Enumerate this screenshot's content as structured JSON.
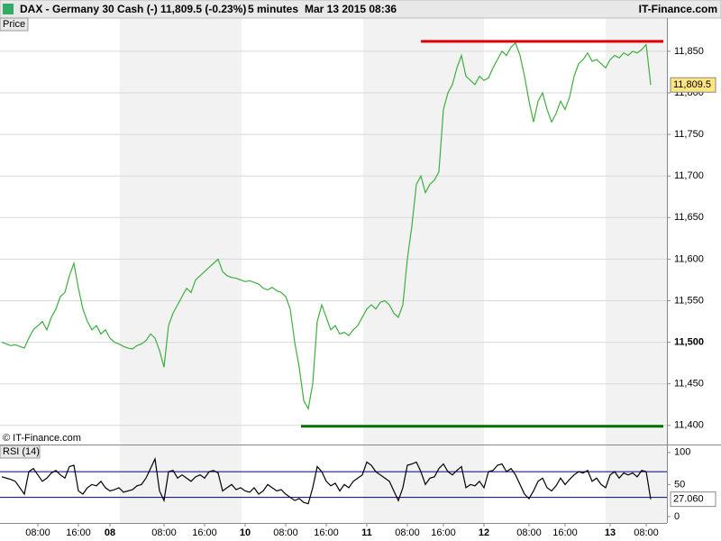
{
  "header": {
    "instrument": "DAX - Germany 30 Cash (-)",
    "price": "11,809.5 (-0.23%)",
    "interval": "5 minutes",
    "datetime": "Mar 13 2015 08:36",
    "brand": "IT-Finance.com"
  },
  "chart_data": [
    {
      "type": "line",
      "title": "Price",
      "copyright": "© IT-Finance.com",
      "categories": [
        null,
        null,
        null,
        null,
        null,
        null,
        null,
        null,
        "08:00",
        null,
        null,
        null,
        null,
        null,
        null,
        null,
        null,
        "16:00",
        null,
        null,
        null,
        null,
        null,
        null,
        "08",
        null,
        null,
        null,
        null,
        null,
        null,
        null,
        null,
        null,
        null,
        null,
        "08:00",
        null,
        null,
        null,
        null,
        null,
        null,
        null,
        null,
        "16:00",
        null,
        null,
        null,
        null,
        null,
        null,
        null,
        null,
        "10",
        null,
        null,
        null,
        null,
        null,
        null,
        null,
        null,
        "08:00",
        null,
        null,
        null,
        null,
        null,
        null,
        null,
        null,
        "16:00",
        null,
        null,
        null,
        null,
        null,
        null,
        null,
        null,
        "11",
        null,
        null,
        null,
        null,
        null,
        null,
        null,
        null,
        "08:00",
        null,
        null,
        null,
        null,
        null,
        null,
        null,
        "16:00",
        null,
        null,
        null,
        null,
        null,
        null,
        null,
        null,
        "12",
        null,
        null,
        null,
        null,
        null,
        null,
        null,
        null,
        null,
        "08:00",
        null,
        null,
        null,
        null,
        null,
        null,
        null,
        "16:00",
        null,
        null,
        null,
        null,
        null,
        null,
        null,
        null,
        null,
        "13",
        null,
        null,
        null,
        null,
        null,
        null,
        null,
        "08:00",
        null
      ],
      "series": [
        {
          "color": "#3fae3f",
          "values": [
            11500,
            11498,
            11496,
            11497,
            11495,
            11493,
            11505,
            11515,
            11520,
            11525,
            11515,
            11530,
            11540,
            11555,
            11560,
            11580,
            11595,
            11565,
            11540,
            11525,
            11515,
            11520,
            11510,
            11515,
            11505,
            11500,
            11498,
            11495,
            11493,
            11492,
            11496,
            11498,
            11502,
            11510,
            11505,
            11490,
            11470,
            11520,
            11535,
            11545,
            11555,
            11565,
            11560,
            11575,
            11580,
            11585,
            11590,
            11595,
            11600,
            11585,
            11580,
            11578,
            11577,
            11575,
            11573,
            11574,
            11572,
            11570,
            11565,
            11563,
            11566,
            11562,
            11560,
            11555,
            11540,
            11500,
            11470,
            11430,
            11420,
            11450,
            11525,
            11545,
            11530,
            11515,
            11520,
            11510,
            11512,
            11508,
            11515,
            11520,
            11530,
            11540,
            11545,
            11540,
            11548,
            11550,
            11545,
            11535,
            11530,
            11545,
            11600,
            11640,
            11690,
            11700,
            11680,
            11690,
            11695,
            11705,
            11780,
            11800,
            11810,
            11830,
            11845,
            11820,
            11815,
            11810,
            11820,
            11815,
            11818,
            11830,
            11840,
            11850,
            11845,
            11855,
            11860,
            11845,
            11820,
            11790,
            11765,
            11790,
            11800,
            11780,
            11765,
            11775,
            11790,
            11780,
            11795,
            11820,
            11835,
            11840,
            11848,
            11838,
            11840,
            11835,
            11830,
            11840,
            11845,
            11842,
            11848,
            11845,
            11850,
            11848,
            11852,
            11858,
            11809.5
          ]
        }
      ],
      "last_label": "11,809.5",
      "last_color": "#ffe680",
      "lines": [
        {
          "value": 11862,
          "color": "#e00000"
        },
        {
          "value": 11399,
          "color": "#007000"
        }
      ],
      "ylim": [
        11377,
        11890
      ],
      "highlight_tick": 11500,
      "yticks": [
        {
          "value": 11400,
          "label": "11,400"
        },
        {
          "value": 11450,
          "label": "11,450"
        },
        {
          "value": 11500,
          "label": "11,500"
        },
        {
          "value": 11550,
          "label": "11,550"
        },
        {
          "value": 11600,
          "label": "11,600"
        },
        {
          "value": 11650,
          "label": "11,650"
        },
        {
          "value": 11700,
          "label": "11,700"
        },
        {
          "value": 11750,
          "label": "11,750"
        },
        {
          "value": 11800,
          "label": "11,800"
        },
        {
          "value": 11850,
          "label": "11,850"
        }
      ],
      "grid": true
    },
    {
      "type": "line",
      "title": "RSI (14)",
      "series": [
        {
          "color": "#000000",
          "values": [
            62,
            60,
            58,
            55,
            45,
            35,
            70,
            75,
            65,
            55,
            60,
            68,
            72,
            65,
            60,
            78,
            80,
            40,
            35,
            45,
            50,
            48,
            55,
            45,
            40,
            42,
            45,
            38,
            40,
            42,
            48,
            50,
            60,
            75,
            90,
            40,
            25,
            70,
            72,
            60,
            65,
            60,
            55,
            62,
            65,
            60,
            70,
            72,
            68,
            40,
            45,
            50,
            42,
            45,
            40,
            38,
            45,
            35,
            40,
            50,
            45,
            40,
            42,
            35,
            30,
            25,
            28,
            22,
            20,
            45,
            78,
            70,
            55,
            48,
            52,
            40,
            50,
            45,
            55,
            60,
            65,
            85,
            80,
            70,
            65,
            60,
            55,
            40,
            25,
            45,
            80,
            82,
            85,
            70,
            50,
            60,
            62,
            75,
            82,
            70,
            65,
            72,
            78,
            45,
            50,
            48,
            55,
            45,
            70,
            72,
            80,
            82,
            70,
            75,
            65,
            50,
            35,
            28,
            40,
            55,
            60,
            45,
            40,
            48,
            60,
            50,
            58,
            65,
            70,
            68,
            72,
            55,
            60,
            50,
            45,
            65,
            70,
            60,
            68,
            65,
            68,
            62,
            72,
            70,
            27.06
          ]
        }
      ],
      "last_label": "27.060",
      "last_color": "#ffffff",
      "levels": [
        70,
        30
      ],
      "level_color": "#000080",
      "ylim": [
        -10,
        111
      ],
      "yticks": [
        0,
        50,
        100
      ]
    }
  ]
}
